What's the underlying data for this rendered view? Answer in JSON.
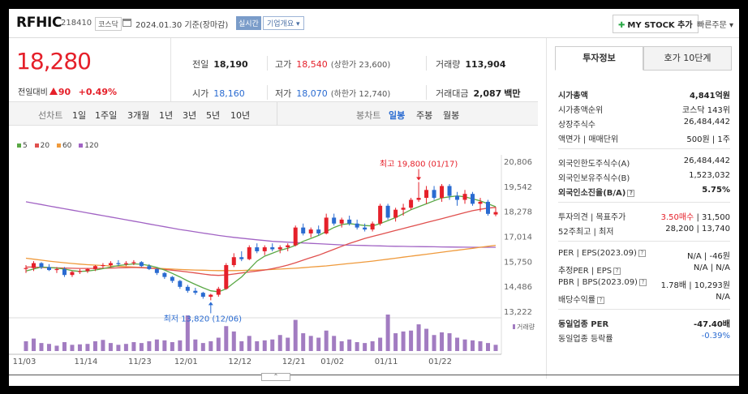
{
  "header": {
    "name": "RFHIC",
    "code": "218410",
    "market": "코스닥",
    "date_text": "2024.01.30 기준(장마감)",
    "realtime_label": "실시간",
    "overview_label": "기업개요 ▾",
    "mystock_label": "MY STOCK 추가",
    "quick_order_label": "빠른주문 ▾"
  },
  "price": {
    "current": "18,280",
    "change_label": "전일대비",
    "change": "90",
    "change_pct": "+0.49%"
  },
  "quote": {
    "prev_label": "전일",
    "prev": "18,190",
    "high_label": "고가",
    "high": "18,540",
    "upper_limit": "(상한가 23,600)",
    "volume_label": "거래량",
    "volume": "113,904",
    "open_label": "시가",
    "open": "18,160",
    "low_label": "저가",
    "low": "18,070",
    "lower_limit": "(하한가 12,740)",
    "amount_label": "거래대금",
    "amount": "2,087",
    "amount_unit": "백만"
  },
  "tabs": {
    "line_label": "선차트",
    "line_periods": [
      "1일",
      "1주일",
      "3개월",
      "1년",
      "3년",
      "5년",
      "10년"
    ],
    "candle_label": "봉차트",
    "candle_periods": [
      "일봉",
      "주봉",
      "월봉"
    ],
    "candle_active": 0
  },
  "legend": [
    {
      "label": "5",
      "color": "#5aa845"
    },
    {
      "label": "20",
      "color": "#e0504e"
    },
    {
      "label": "60",
      "color": "#ef9a3c"
    },
    {
      "label": "120",
      "color": "#a163c4"
    }
  ],
  "colors": {
    "up": "#e5202a",
    "down": "#2a6bd1",
    "volume": "#a27cc1"
  },
  "chart_data": {
    "type": "candlestick",
    "y_ticks": [
      "20,806",
      "19,542",
      "18,278",
      "17,014",
      "15,750",
      "14,486",
      "13,222"
    ],
    "ylim": [
      13222,
      20806
    ],
    "x_labels": [
      {
        "label": "11/03",
        "index": 0
      },
      {
        "label": "11/14",
        "index": 8
      },
      {
        "label": "11/23",
        "index": 15
      },
      {
        "label": "12/01",
        "index": 21
      },
      {
        "label": "12/12",
        "index": 28
      },
      {
        "label": "12/21",
        "index": 35
      },
      {
        "label": "01/02",
        "index": 40
      },
      {
        "label": "01/11",
        "index": 47
      },
      {
        "label": "01/22",
        "index": 54
      }
    ],
    "annotations": {
      "high": {
        "text": "최고 19,800 (01/17)",
        "index": 51,
        "value": 19800
      },
      "low": {
        "text": "최저 13,820 (12/06)",
        "index": 24,
        "value": 13820
      }
    },
    "volume_label": "거래량",
    "candles": [
      [
        15400,
        15600,
        15200,
        15450
      ],
      [
        15450,
        15800,
        15300,
        15700
      ],
      [
        15700,
        15750,
        15400,
        15500
      ],
      [
        15500,
        15650,
        15300,
        15350
      ],
      [
        15350,
        15500,
        15200,
        15400
      ],
      [
        15400,
        15500,
        15000,
        15100
      ],
      [
        15100,
        15300,
        15000,
        15250
      ],
      [
        15250,
        15400,
        15150,
        15300
      ],
      [
        15300,
        15450,
        15200,
        15400
      ],
      [
        15400,
        15600,
        15300,
        15550
      ],
      [
        15550,
        15700,
        15450,
        15600
      ],
      [
        15600,
        15800,
        15500,
        15700
      ],
      [
        15700,
        15850,
        15550,
        15650
      ],
      [
        15650,
        15800,
        15550,
        15700
      ],
      [
        15700,
        15850,
        15600,
        15750
      ],
      [
        15750,
        15800,
        15500,
        15550
      ],
      [
        15550,
        15650,
        15350,
        15400
      ],
      [
        15400,
        15450,
        15100,
        15200
      ],
      [
        15200,
        15250,
        14900,
        15000
      ],
      [
        15000,
        15050,
        14700,
        14800
      ],
      [
        14800,
        14850,
        14400,
        14500
      ],
      [
        14500,
        14600,
        14200,
        14300
      ],
      [
        14300,
        14450,
        14100,
        14200
      ],
      [
        14200,
        14250,
        13900,
        14000
      ],
      [
        14000,
        14150,
        13820,
        14100
      ],
      [
        14100,
        14500,
        14000,
        14400
      ],
      [
        14400,
        15700,
        14350,
        15600
      ],
      [
        15600,
        16200,
        15500,
        16000
      ],
      [
        16000,
        16300,
        15800,
        15900
      ],
      [
        15900,
        16600,
        15850,
        16500
      ],
      [
        16500,
        16700,
        16200,
        16300
      ],
      [
        16300,
        16600,
        16100,
        16500
      ],
      [
        16500,
        16700,
        16300,
        16400
      ],
      [
        16400,
        16600,
        16200,
        16500
      ],
      [
        16500,
        16700,
        16300,
        16600
      ],
      [
        16600,
        17600,
        16550,
        17500
      ],
      [
        17500,
        17700,
        17100,
        17200
      ],
      [
        17200,
        17500,
        17000,
        17400
      ],
      [
        17400,
        17600,
        17100,
        17200
      ],
      [
        17200,
        18200,
        17150,
        18000
      ],
      [
        18000,
        18200,
        17600,
        17700
      ],
      [
        17700,
        18000,
        17500,
        17900
      ],
      [
        17900,
        18100,
        17600,
        17700
      ],
      [
        17700,
        17900,
        17400,
        17500
      ],
      [
        17500,
        17700,
        17300,
        17400
      ],
      [
        17400,
        17800,
        17300,
        17700
      ],
      [
        17700,
        18700,
        17600,
        18600
      ],
      [
        18600,
        18700,
        17900,
        18000
      ],
      [
        18000,
        18500,
        17800,
        18400
      ],
      [
        18400,
        18700,
        18100,
        18500
      ],
      [
        18500,
        19000,
        18400,
        18900
      ],
      [
        18900,
        19800,
        18800,
        19000
      ],
      [
        19000,
        19600,
        18700,
        19400
      ],
      [
        19400,
        19600,
        18900,
        19000
      ],
      [
        19000,
        19700,
        18800,
        19600
      ],
      [
        19600,
        19700,
        18900,
        19100
      ],
      [
        19100,
        19300,
        18600,
        18900
      ],
      [
        18900,
        19400,
        18700,
        19200
      ],
      [
        19200,
        19300,
        18600,
        18700
      ],
      [
        18700,
        19000,
        18300,
        18800
      ],
      [
        18800,
        18900,
        18100,
        18190
      ],
      [
        18160,
        18540,
        18070,
        18280
      ]
    ],
    "volumes": [
      22,
      28,
      18,
      16,
      12,
      20,
      14,
      15,
      16,
      22,
      25,
      18,
      14,
      16,
      20,
      18,
      22,
      26,
      24,
      20,
      24,
      80,
      26,
      18,
      22,
      30,
      56,
      44,
      22,
      34,
      22,
      24,
      26,
      36,
      30,
      70,
      40,
      34,
      30,
      46,
      34,
      22,
      26,
      20,
      18,
      22,
      30,
      82,
      40,
      44,
      46,
      60,
      50,
      36,
      42,
      40,
      30,
      26,
      24,
      22,
      18,
      14
    ],
    "ma5": [
      15300,
      15400,
      15500,
      15480,
      15450,
      15400,
      15320,
      15280,
      15300,
      15350,
      15420,
      15500,
      15580,
      15620,
      15660,
      15640,
      15580,
      15480,
      15350,
      15180,
      15000,
      14800,
      14620,
      14450,
      14300,
      14250,
      14400,
      14700,
      15000,
      15400,
      15800,
      16050,
      16200,
      16350,
      16450,
      16600,
      16800,
      16950,
      17100,
      17300,
      17500,
      17650,
      17700,
      17650,
      17600,
      17580,
      17700,
      17850,
      18000,
      18200,
      18400,
      18550,
      18700,
      18850,
      19000,
      19050,
      19100,
      19050,
      18950,
      18850,
      18700,
      18550
    ],
    "ma20": [
      15500,
      15500,
      15480,
      15470,
      15460,
      15450,
      15440,
      15430,
      15430,
      15430,
      15440,
      15450,
      15460,
      15470,
      15480,
      15470,
      15450,
      15420,
      15380,
      15340,
      15300,
      15250,
      15200,
      15150,
      15100,
      15080,
      15100,
      15150,
      15200,
      15250,
      15300,
      15350,
      15420,
      15500,
      15600,
      15720,
      15850,
      15980,
      16100,
      16250,
      16400,
      16550,
      16700,
      16820,
      16950,
      17050,
      17150,
      17250,
      17350,
      17450,
      17550,
      17650,
      17750,
      17850,
      17950,
      18050,
      18150,
      18250,
      18350,
      18420,
      18480,
      18520
    ],
    "ma60": [
      15950,
      15900,
      15850,
      15800,
      15760,
      15720,
      15680,
      15650,
      15620,
      15600,
      15580,
      15560,
      15540,
      15520,
      15500,
      15480,
      15460,
      15440,
      15420,
      15400,
      15380,
      15360,
      15350,
      15340,
      15330,
      15320,
      15320,
      15320,
      15330,
      15340,
      15350,
      15360,
      15380,
      15400,
      15420,
      15440,
      15470,
      15500,
      15530,
      15560,
      15600,
      15640,
      15680,
      15720,
      15760,
      15800,
      15850,
      15900,
      15950,
      16000,
      16050,
      16100,
      16150,
      16200,
      16250,
      16300,
      16350,
      16400,
      16450,
      16500,
      16550,
      16600
    ],
    "ma120": [
      18800,
      18730,
      18660,
      18590,
      18520,
      18450,
      18380,
      18310,
      18240,
      18170,
      18100,
      18030,
      17960,
      17890,
      17820,
      17750,
      17680,
      17610,
      17540,
      17470,
      17400,
      17340,
      17280,
      17220,
      17160,
      17100,
      17050,
      17000,
      16960,
      16920,
      16880,
      16840,
      16800,
      16780,
      16760,
      16740,
      16720,
      16700,
      16680,
      16660,
      16640,
      16620,
      16610,
      16600,
      16590,
      16580,
      16570,
      16560,
      16550,
      16545,
      16540,
      16535,
      16530,
      16525,
      16520,
      16515,
      16510,
      16505,
      16500,
      16500,
      16500,
      16500
    ]
  },
  "info": {
    "tab_invest": "투자정보",
    "tab_ask": "호가 10단계",
    "market_cap_label": "시가총액",
    "market_cap": "4,841억원",
    "market_cap_rank_label": "시가총액순위",
    "market_cap_rank": "코스닥 143위",
    "shares_label": "상장주식수",
    "shares": "26,484,442",
    "par_label": "액면가 | 매매단위",
    "par": "500원 | 1주",
    "foreign_limit_label": "외국인한도주식수(A)",
    "foreign_limit": "26,484,442",
    "foreign_hold_label": "외국인보유주식수(B)",
    "foreign_hold": "1,523,032",
    "foreign_ratio_label": "외국인소진율(B/A)",
    "foreign_ratio": "5.75%",
    "opinion_label": "투자의견 | 목표주가",
    "opinion": "3.50매수",
    "target": "| 31,500",
    "week52_label": "52주최고 | 최저",
    "week52": "28,200 | 13,740",
    "per_label": "PER | EPS(2023.09)",
    "per": "N/A | -46원",
    "est_per_label": "추정PER | EPS",
    "est_per": "N/A | N/A",
    "pbr_label": "PBR | BPS(2023.09)",
    "pbr": "1.78배 | 10,293원",
    "div_label": "배당수익률",
    "div": "N/A",
    "sector_per_label": "동일업종 PER",
    "sector_per": "-47.40배",
    "sector_chg_label": "동일업종 등락률",
    "sector_chg": "-0.39%"
  },
  "collapse_label": "⌃"
}
